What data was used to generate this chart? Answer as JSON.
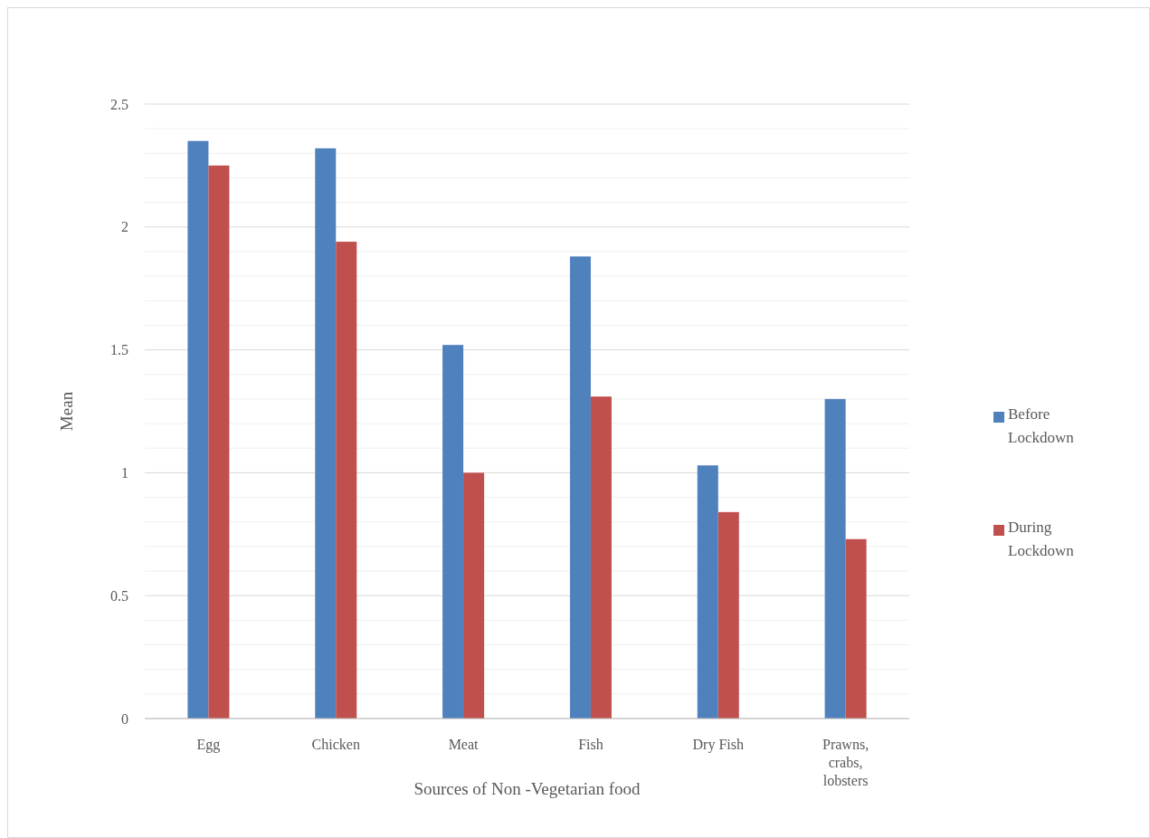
{
  "chart_data": {
    "type": "bar",
    "xlabel": "Sources of Non -Vegetarian food",
    "ylabel": "Mean",
    "categories": [
      "Egg",
      "Chicken",
      "Meat",
      "Fish",
      "Dry Fish",
      "Prawns, crabs, lobsters"
    ],
    "series": [
      {
        "name": "Before Lockdown",
        "color": "#4f81bd",
        "values": [
          2.35,
          2.32,
          1.52,
          1.88,
          1.03,
          1.3
        ]
      },
      {
        "name": "During Lockdown",
        "color": "#c0504d",
        "values": [
          2.25,
          1.94,
          1.0,
          1.31,
          0.84,
          0.73
        ]
      }
    ],
    "ylim": [
      0,
      2.5
    ],
    "yticks": [
      0,
      {
        "value": 0.1,
        "label": null
      },
      {
        "value": 0.2,
        "label": null
      },
      {
        "value": 0.3,
        "label": null
      },
      {
        "value": 0.4,
        "label": null
      },
      0.5,
      {
        "value": 0.6,
        "label": null
      },
      {
        "value": 0.7,
        "label": null
      },
      {
        "value": 0.8,
        "label": null
      },
      {
        "value": 0.9,
        "label": null
      },
      1,
      {
        "value": 1.1,
        "label": null
      },
      {
        "value": 1.2,
        "label": null
      },
      {
        "value": 1.3,
        "label": null
      },
      {
        "value": 1.4,
        "label": null
      },
      1.5,
      {
        "value": 1.6,
        "label": null
      },
      {
        "value": 1.7,
        "label": null
      },
      {
        "value": 1.8,
        "label": null
      },
      {
        "value": 1.9,
        "label": null
      },
      2,
      {
        "value": 2.1,
        "label": null
      },
      {
        "value": 2.2,
        "label": null
      },
      {
        "value": 2.3,
        "label": null
      },
      {
        "value": 2.4,
        "label": null
      },
      2.5
    ],
    "grid": true,
    "legend": "right"
  }
}
